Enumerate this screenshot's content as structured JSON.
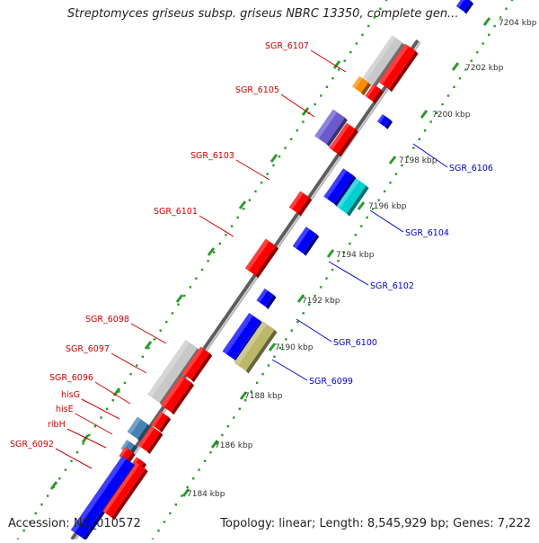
{
  "title": "Streptomyces griseus subsp. griseus NBRC 13350, complete gen...",
  "footer": {
    "accession": "Accession: NC_010572",
    "summary": "Topology: linear; Length: 8,545,929 bp; Genes: 7,222"
  },
  "colors": {
    "backbone": "#8a8a8a",
    "tick": "#2a9a2a",
    "forward_label": "#cc0000",
    "reverse_label": "#0000cc",
    "red": "#ff0000",
    "blue": "#0000ff",
    "grey": "#c8c8c8",
    "orange": "#ff8c00",
    "purple": "#6a5acd",
    "cyan": "#00d0d0",
    "olive": "#bdb76b",
    "steelblue": "#4682b4"
  },
  "ruler_labels": [
    "7184 kbp",
    "7186 kbp",
    "7188 kbp",
    "7190 kbp",
    "7192 kbp",
    "7194 kbp",
    "7196 kbp",
    "7198 kbp",
    "7200 kbp",
    "7202 kbp",
    "7204 kbp"
  ],
  "forward_labels": [
    "SGR_6107",
    "SGR_6105",
    "SGR_6103",
    "SGR_6101",
    "SGR_6098",
    "SGR_6097",
    "SGR_6096",
    "hisG",
    "hisE",
    "ribH",
    "SGR_6092"
  ],
  "reverse_labels": [
    "SGR_6106",
    "SGR_6104",
    "SGR_6102",
    "SGR_6100",
    "SGR_6099"
  ]
}
